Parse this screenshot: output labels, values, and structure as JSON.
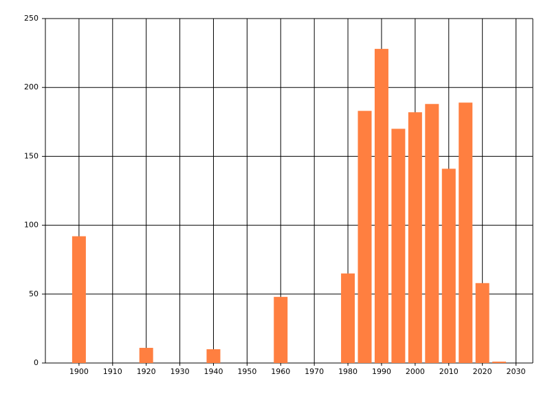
{
  "chart_data": {
    "type": "bar",
    "x": [
      1900,
      1920,
      1940,
      1960,
      1980,
      1985,
      1990,
      1995,
      2000,
      2005,
      2010,
      2015,
      2020,
      2025
    ],
    "values": [
      92,
      11,
      10,
      48,
      65,
      183,
      228,
      170,
      182,
      188,
      141,
      189,
      58,
      1
    ],
    "color": "#ff7f40",
    "xlim": [
      1890,
      2035
    ],
    "xticks": [
      1900,
      1910,
      1920,
      1930,
      1940,
      1950,
      1960,
      1970,
      1980,
      1990,
      2000,
      2010,
      2020,
      2030
    ],
    "ylim": [
      0,
      250
    ],
    "yticks": [
      0,
      50,
      100,
      150,
      200,
      250
    ],
    "grid": true
  }
}
